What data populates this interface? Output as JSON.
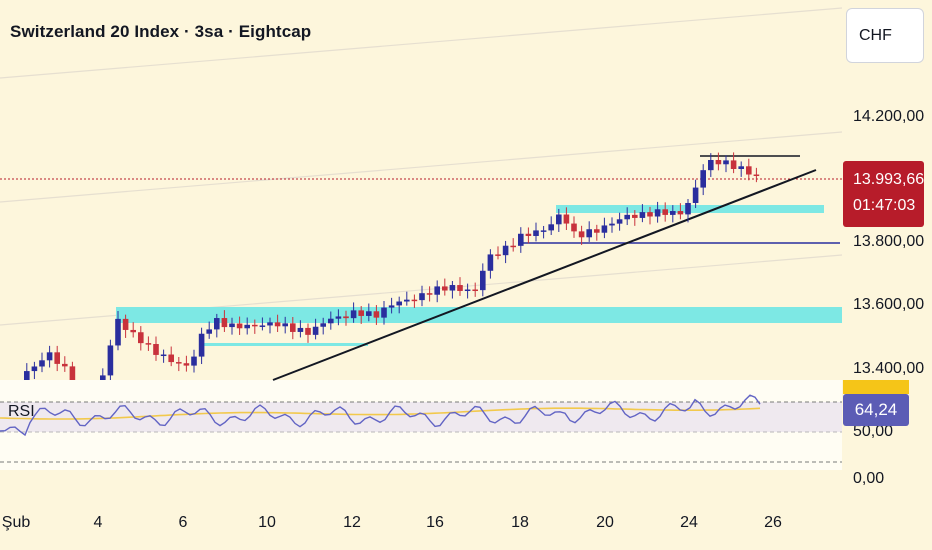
{
  "header": {
    "title": "Switzerland 20 Index · 3sa · Eightcap"
  },
  "currency_button": {
    "label": "CHF"
  },
  "price_axis": {
    "labels": [
      "14.200,00",
      "13.800,00",
      "13.600,00",
      "13.400,00"
    ]
  },
  "current_price": {
    "value": "13.993,66",
    "countdown": "01:47:03"
  },
  "rsi": {
    "label": "RSI",
    "value": "64,24",
    "axis_labels": [
      "50,00",
      "0,00"
    ]
  },
  "time_axis": {
    "labels": [
      "Şub",
      "4",
      "6",
      "10",
      "12",
      "16",
      "18",
      "20",
      "24",
      "26"
    ]
  },
  "colors": {
    "bull": "#2a2e9e",
    "bear": "#c8323c",
    "zone": "#7de8e4",
    "rsi_line": "#6264c4",
    "rsi_ma": "#f2c94c",
    "price_tag": "#b71c2a"
  }
}
